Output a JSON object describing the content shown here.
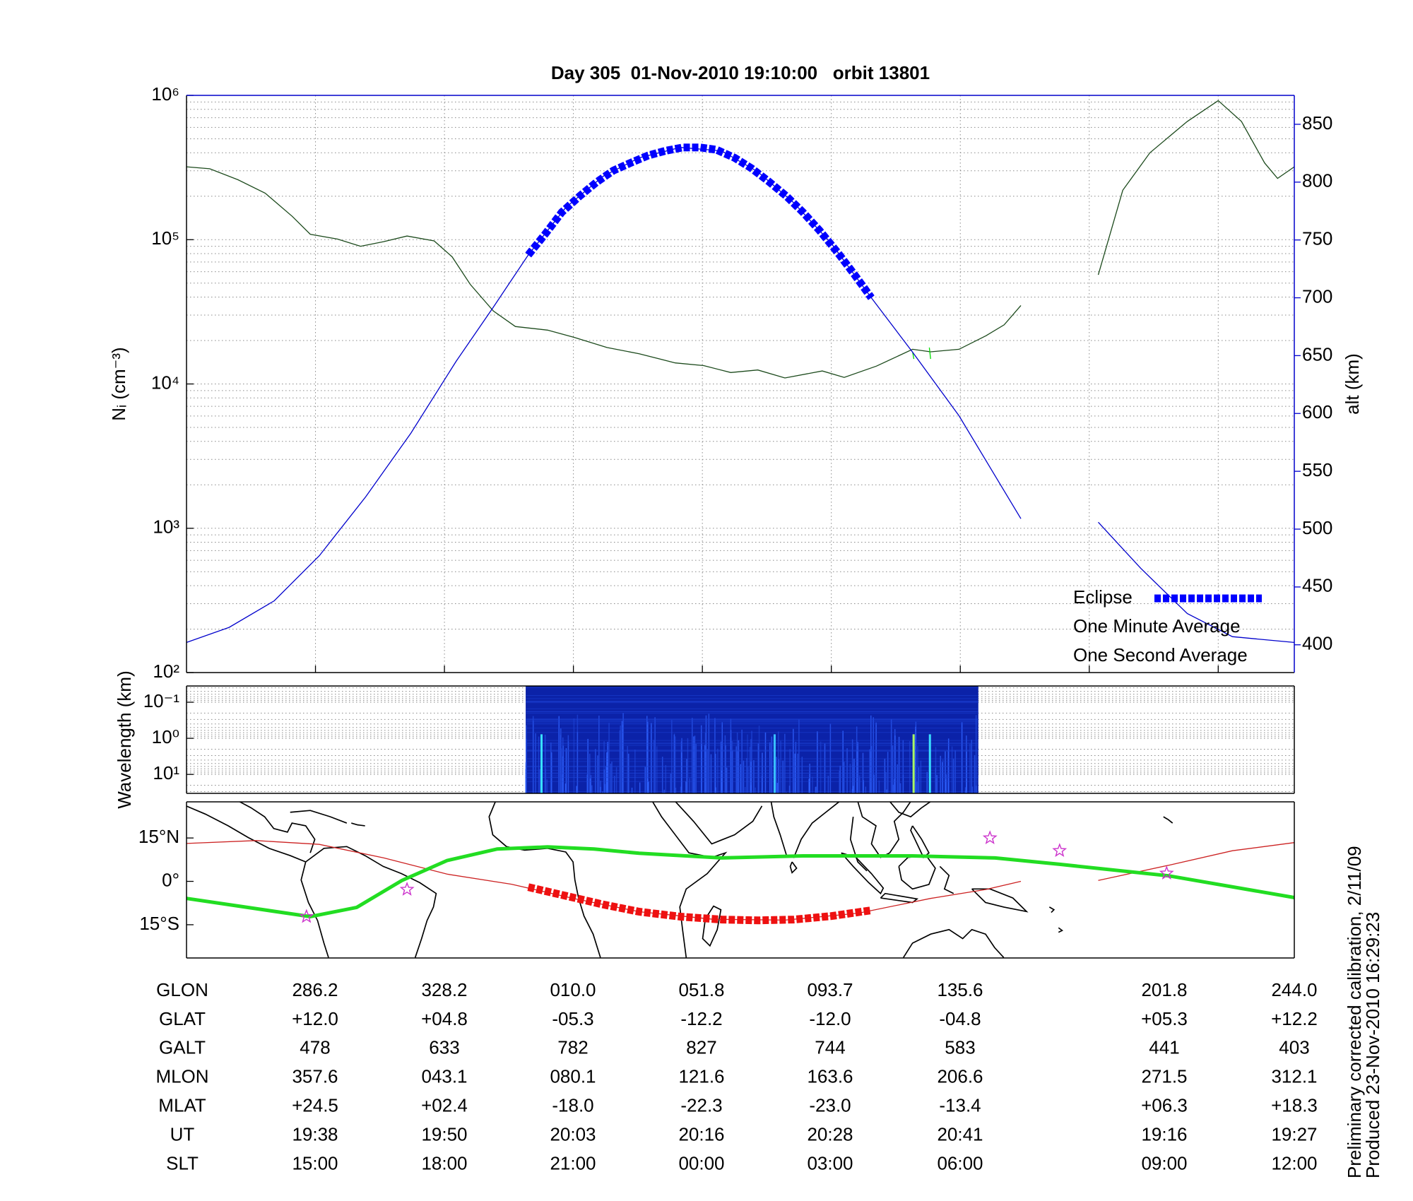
{
  "chart_data": [
    {
      "type": "line",
      "title": "Day 305  01-Nov-2010 19:10:00   orbit 13801",
      "y_label": "Nᵢ (cm⁻³)",
      "y2_label": "alt (km)",
      "y2_color": "#0000cc",
      "xlim": [
        0,
        8.59
      ],
      "xticks": [
        1,
        2,
        3,
        4,
        5,
        6,
        7,
        8
      ],
      "ylim": [
        100,
        1000000
      ],
      "log_y": true,
      "yticks": [
        {
          "value": 100,
          "label": "10²"
        },
        {
          "value": 1000,
          "label": "10³"
        },
        {
          "value": 10000,
          "label": "10⁴"
        },
        {
          "value": 100000,
          "label": "10⁵"
        },
        {
          "value": 1000000,
          "label": "10⁶"
        }
      ],
      "y2lim": [
        376,
        875
      ],
      "y2ticks": [
        400,
        450,
        500,
        550,
        600,
        650,
        700,
        750,
        800,
        850
      ],
      "grid": true,
      "legend": "lower right",
      "series": [
        {
          "name": "Eclipse",
          "color": "#0000ff",
          "axis": "y2",
          "marker": "square",
          "x": [
            2.65,
            2.78,
            2.91,
            3.05,
            3.18,
            3.31,
            3.45,
            3.58,
            3.71,
            3.85,
            3.98,
            4.11,
            4.25,
            4.38,
            4.51,
            4.65,
            4.78,
            4.91,
            5.05,
            5.18,
            5.31
          ],
          "values": [
            737,
            755,
            774,
            788,
            800,
            810,
            817,
            823,
            827,
            830,
            830,
            828,
            821,
            812,
            801,
            788,
            774,
            758,
            739,
            720,
            700
          ]
        },
        {
          "name": "One Minute Average",
          "color": "#1c4a1c",
          "x": [
            0,
            0.18,
            0.4,
            0.61,
            0.82,
            0.96,
            1.17,
            1.35,
            1.53,
            1.71,
            1.92,
            2.06,
            2.2,
            2.38,
            2.55,
            2.8,
            3.01,
            3.26,
            3.51,
            3.79,
            4.01,
            4.22,
            4.43,
            4.64,
            4.93,
            5.1,
            5.35,
            5.63,
            5.77,
            5.99,
            6.2,
            6.34,
            6.47,
            null,
            7.07,
            7.26,
            7.47,
            7.76,
            8.0,
            8.18,
            8.36,
            8.46,
            8.59
          ],
          "values": [
            320000,
            310000,
            260000,
            210000,
            145000,
            109000,
            101000,
            90000,
            97000,
            106000,
            98000,
            76000,
            49000,
            32000,
            25000,
            23600,
            21000,
            17900,
            16200,
            14000,
            13400,
            12000,
            12500,
            11000,
            12300,
            11100,
            13300,
            17400,
            16700,
            17400,
            21600,
            25700,
            35000,
            null,
            57000,
            220000,
            400000,
            660000,
            920000,
            660000,
            340000,
            266000,
            320000
          ]
        },
        {
          "name": "One Second Average",
          "color": "#00dd00",
          "x": [
            5.63,
            5.64,
            null,
            5.76,
            5.77
          ],
          "values": [
            16700,
            14900,
            null,
            17900,
            14900
          ]
        },
        {
          "color": "#0000cc",
          "axis": "y2",
          "x": [
            0,
            0.33,
            0.68,
            1.03,
            1.39,
            1.74,
            2.09,
            2.38,
            2.65,
            2.94,
            3.23,
            3.51,
            3.83,
            4.15,
            4.43,
            4.71,
            5.0,
            5.31,
            5.63,
            5.99,
            6.47,
            null,
            7.07,
            7.4,
            7.76,
            8.11,
            8.59
          ],
          "values": [
            402,
            415,
            438,
            477,
            528,
            583,
            645,
            692,
            737,
            778,
            805,
            821,
            830,
            827,
            809,
            782,
            747,
            700,
            653,
            598,
            509,
            null,
            506,
            466,
            427,
            407,
            402
          ]
        }
      ]
    },
    {
      "type": "heatmap",
      "y_label": "Wavelength (km)",
      "xlim": [
        0,
        8.59
      ],
      "ylim": [
        33.5,
        0.0355
      ],
      "log_y": true,
      "yticks": [
        {
          "value": 0.1,
          "label": "10⁻¹"
        },
        {
          "value": 1,
          "label": "10⁰"
        },
        {
          "value": 10,
          "label": "10¹"
        }
      ],
      "grid": true,
      "x": [
        2.63,
        6.14
      ],
      "color": "#0b22a8"
    },
    {
      "type": "map",
      "xlim": [
        0,
        8.59
      ],
      "ylim": [
        -26.5,
        27.5
      ],
      "yticks": [
        {
          "value": 15,
          "label": "15°N"
        },
        {
          "value": 0,
          "label": "0°"
        },
        {
          "value": -15,
          "label": "15°S"
        }
      ],
      "series": [
        {
          "color": "#cc2222",
          "x": [
            0,
            0.54,
            1.03,
            1.53,
            2.02,
            2.52,
            3.01,
            3.51,
            4.08,
            4.64,
            5.21,
            5.77,
            6.2,
            6.47,
            null,
            7.07,
            7.62,
            8.11,
            8.59
          ],
          "values": [
            13.1,
            14.1,
            12.8,
            8.1,
            2.5,
            -1,
            -6,
            -10.5,
            -13.1,
            -13.4,
            -11,
            -5.9,
            -2.8,
            0,
            null,
            0.3,
            5.6,
            10.6,
            13.4
          ]
        },
        {
          "color": "#22dd22",
          "x": [
            0,
            0.96,
            1.32,
            1.67,
            2.02,
            2.41,
            2.8,
            3.16,
            3.51,
            4.15,
            4.78,
            5.63,
            6.27,
            6.77,
            7.62,
            8.59
          ],
          "values": [
            -5.9,
            -12.2,
            -9,
            0.3,
            7.2,
            11.2,
            11.9,
            11.2,
            9.7,
            8.1,
            8.8,
            8.8,
            8.1,
            5.9,
            1.9,
            -5.6
          ]
        },
        {
          "color": "#ee1111",
          "marker": "square",
          "x": [
            2.65,
            2.94,
            3.23,
            3.51,
            3.83,
            4.15,
            4.43,
            4.71,
            5.0,
            5.31
          ],
          "values": [
            -2,
            -5,
            -8,
            -10.5,
            -12.2,
            -13.2,
            -13.5,
            -13.2,
            -12,
            -10
          ]
        },
        {
          "color": "#cc33cc",
          "marker": "star",
          "x": [
            0.93,
            1.71,
            6.23,
            6.77,
            7.6
          ],
          "values": [
            -12.2,
            -2.8,
            15,
            10.6,
            2.8
          ]
        }
      ]
    }
  ],
  "table": {
    "row_labels": [
      "GLON",
      "GLAT",
      "GALT",
      "MLON",
      "MLAT",
      "UT",
      "SLT"
    ],
    "rows": [
      [
        "286.2",
        "328.2",
        "010.0",
        "051.8",
        "093.7",
        "135.6",
        "201.8",
        "244.0"
      ],
      [
        "+12.0",
        "+04.8",
        "-05.3",
        "-12.2",
        "-12.0",
        "-04.8",
        "+05.3",
        "+12.2"
      ],
      [
        "478",
        "633",
        "782",
        "827",
        "744",
        "583",
        "441",
        "403"
      ],
      [
        "357.6",
        "043.1",
        "080.1",
        "121.6",
        "163.6",
        "206.6",
        "271.5",
        "312.1"
      ],
      [
        "+24.5",
        "+02.4",
        "-18.0",
        "-22.3",
        "-23.0",
        "-13.4",
        "+06.3",
        "+18.3"
      ],
      [
        "19:38",
        "19:50",
        "20:03",
        "20:16",
        "20:28",
        "20:41",
        "19:16",
        "19:27"
      ],
      [
        "15:00",
        "18:00",
        "21:00",
        "00:00",
        "03:00",
        "06:00",
        "09:00",
        "12:00"
      ]
    ]
  },
  "notes": [
    "Preliminary corrected calibration, 2/11/09",
    "Produced 23-Nov-2010 16:29:23"
  ]
}
